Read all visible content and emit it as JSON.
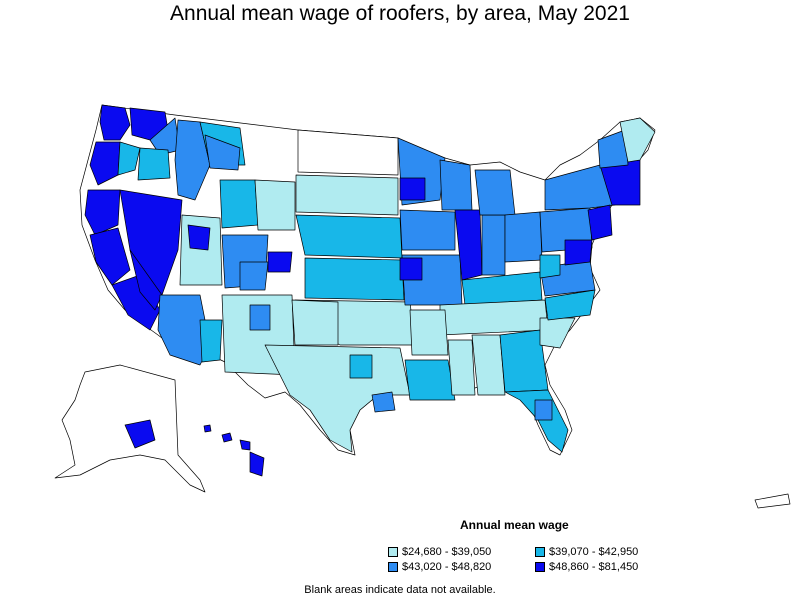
{
  "title": "Annual mean wage of roofers, by area, May 2021",
  "legend": {
    "title": "Annual mean wage",
    "items": [
      {
        "label": "$24,680 - $39,050",
        "color": "#b0ebf0"
      },
      {
        "label": "$39,070 - $42,950",
        "color": "#18b7e8"
      },
      {
        "label": "$43,020 - $48,820",
        "color": "#2e8cf2"
      },
      {
        "label": "$48,860 - $81,450",
        "color": "#0a0af0"
      }
    ]
  },
  "footnote": "Blank areas indicate data not available.",
  "colors": {
    "tier1": "#b0ebf0",
    "tier2": "#18b7e8",
    "tier3": "#2e8cf2",
    "tier4": "#0a0af0",
    "blank": "#ffffff",
    "border": "#000000"
  }
}
